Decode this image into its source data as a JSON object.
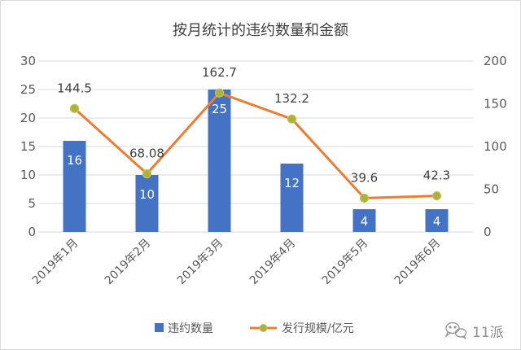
{
  "chart_data": {
    "type": "bar",
    "title": "按月统计的违约数量和金额",
    "categories": [
      "2019年1月",
      "2019年2月",
      "2019年3月",
      "2019年4月",
      "2019年5月",
      "2019年6月"
    ],
    "series": [
      {
        "name": "违约数量",
        "type": "bar",
        "axis": "left",
        "values": [
          16,
          10,
          25,
          12,
          4,
          4
        ],
        "color": "#4472C4",
        "label_color": "#FFFFFF"
      },
      {
        "name": "发行规模/亿元",
        "type": "line",
        "axis": "right",
        "values": [
          144.5,
          68.08,
          162.7,
          132.2,
          39.6,
          42.3
        ],
        "color": "#ED7D31",
        "marker_color": "#A9B23D"
      }
    ],
    "ylim": [
      0,
      30
    ],
    "y_ticks": [
      0,
      5,
      10,
      15,
      20,
      25,
      30
    ],
    "y2lim": [
      0,
      200
    ],
    "y2_ticks": [
      0,
      50,
      100,
      150,
      200
    ],
    "xlabel": "",
    "ylabel": "",
    "grid": true,
    "legend": "bottom",
    "data_labels": true
  },
  "watermark": {
    "text": "11派",
    "icon": "wechat-icon"
  }
}
